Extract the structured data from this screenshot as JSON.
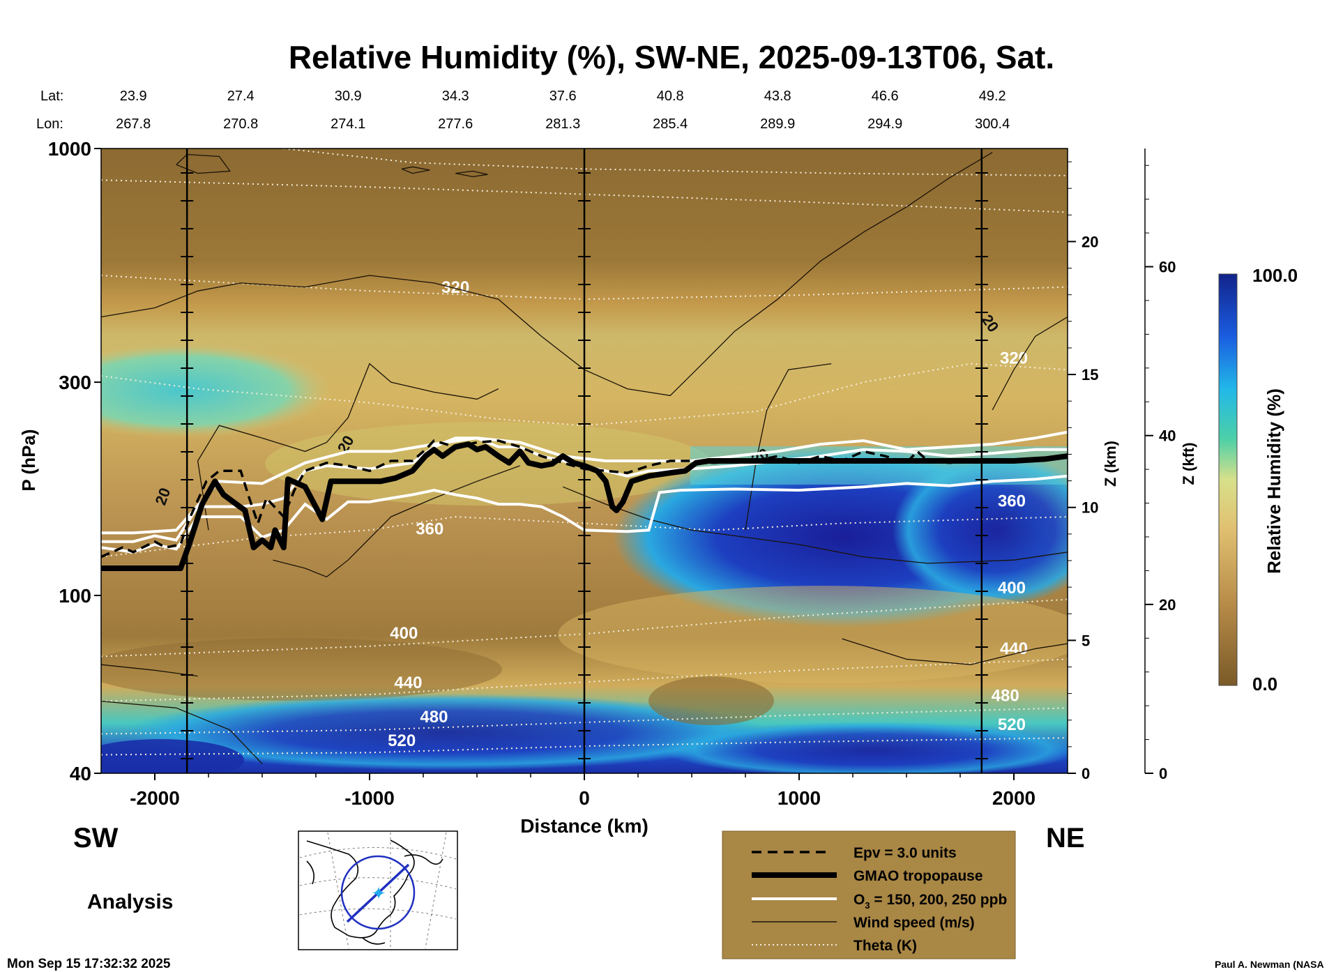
{
  "chart_data": {
    "type": "heatmap",
    "title": "Relative Humidity (%), SW-NE, 2025-09-13T06, Sat.",
    "xlabel": "Distance (km)",
    "ylabel": "P (hPa)",
    "y2label": "Z (km)",
    "y3label": "Z (kft)",
    "colorbar_label": "Relative Humidity (%)",
    "colorbar_max_label": "100.0",
    "colorbar_min_label": "0.0",
    "xlim": [
      -2250,
      2250
    ],
    "ylim_hpa": [
      1000,
      40
    ],
    "x_ticks": [
      "-2000",
      "-1000",
      "0",
      "1000",
      "2000"
    ],
    "x_tick_values": [
      -2000,
      -1000,
      0,
      1000,
      2000
    ],
    "y_ticks": [
      "40",
      "100",
      "300",
      "1000"
    ],
    "y_tick_values": [
      40,
      100,
      300,
      1000
    ],
    "z_km_ticks": [
      "0",
      "5",
      "10",
      "15",
      "20"
    ],
    "z_km_values": [
      0,
      5,
      10,
      15,
      20
    ],
    "z_kft_ticks": [
      "0",
      "20",
      "40",
      "60"
    ],
    "z_kft_values": [
      0,
      20,
      40,
      60
    ],
    "lat_label": "Lat:",
    "lon_label": "Lon:",
    "lat_values": [
      "23.9",
      "27.4",
      "30.9",
      "34.3",
      "37.6",
      "40.8",
      "43.8",
      "46.6",
      "49.2"
    ],
    "lon_values": [
      "267.8",
      "270.8",
      "274.1",
      "277.6",
      "281.3",
      "285.4",
      "289.9",
      "294.9",
      "300.4"
    ],
    "station_distances_km": [
      -2100,
      -1600,
      -1100,
      -600,
      -100,
      400,
      900,
      1400,
      1900
    ],
    "marker_lines_km": [
      -1850,
      0,
      1850
    ],
    "theta_levels": [
      320,
      360,
      400,
      440,
      480,
      520
    ],
    "theta_labels": [
      "320",
      "360",
      "400",
      "440",
      "480",
      "520"
    ],
    "wind_speed_label": "20",
    "tropopause_hpa": [
      [
        -2250,
        115
      ],
      [
        -1880,
        115
      ],
      [
        -1840,
        130
      ],
      [
        -1780,
        160
      ],
      [
        -1720,
        180
      ],
      [
        -1680,
        168
      ],
      [
        -1620,
        160
      ],
      [
        -1580,
        155
      ],
      [
        -1540,
        128
      ],
      [
        -1500,
        133
      ],
      [
        -1460,
        128
      ],
      [
        -1440,
        140
      ],
      [
        -1400,
        128
      ],
      [
        -1380,
        182
      ],
      [
        -1300,
        175
      ],
      [
        -1220,
        148
      ],
      [
        -1180,
        180
      ],
      [
        -1100,
        180
      ],
      [
        -950,
        180
      ],
      [
        -880,
        183
      ],
      [
        -800,
        190
      ],
      [
        -740,
        205
      ],
      [
        -700,
        212
      ],
      [
        -660,
        205
      ],
      [
        -600,
        215
      ],
      [
        -540,
        218
      ],
      [
        -500,
        212
      ],
      [
        -460,
        215
      ],
      [
        -400,
        205
      ],
      [
        -350,
        198
      ],
      [
        -300,
        210
      ],
      [
        -260,
        198
      ],
      [
        -200,
        195
      ],
      [
        -150,
        197
      ],
      [
        -100,
        205
      ],
      [
        -50,
        198
      ],
      [
        0,
        195
      ],
      [
        60,
        190
      ],
      [
        100,
        180
      ],
      [
        130,
        158
      ],
      [
        150,
        155
      ],
      [
        180,
        162
      ],
      [
        220,
        180
      ],
      [
        300,
        185
      ],
      [
        400,
        188
      ],
      [
        470,
        190
      ],
      [
        520,
        198
      ],
      [
        580,
        200
      ],
      [
        2000,
        200
      ],
      [
        2150,
        202
      ],
      [
        2250,
        205
      ]
    ],
    "epv_hpa": [
      [
        -2250,
        122
      ],
      [
        -2150,
        128
      ],
      [
        -2100,
        125
      ],
      [
        -2000,
        132
      ],
      [
        -1950,
        128
      ],
      [
        -1880,
        130
      ],
      [
        -1840,
        148
      ],
      [
        -1760,
        180
      ],
      [
        -1700,
        190
      ],
      [
        -1600,
        190
      ],
      [
        -1560,
        165
      ],
      [
        -1520,
        145
      ],
      [
        -1480,
        165
      ],
      [
        -1400,
        150
      ],
      [
        -1350,
        172
      ],
      [
        -1300,
        190
      ],
      [
        -1200,
        198
      ],
      [
        -1100,
        195
      ],
      [
        -1000,
        190
      ],
      [
        -900,
        200
      ],
      [
        -800,
        200
      ],
      [
        -740,
        212
      ],
      [
        -700,
        222
      ],
      [
        -600,
        215
      ],
      [
        -500,
        220
      ],
      [
        -400,
        222
      ],
      [
        -300,
        215
      ],
      [
        -200,
        205
      ],
      [
        -100,
        198
      ],
      [
        0,
        192
      ],
      [
        100,
        190
      ],
      [
        200,
        188
      ],
      [
        300,
        195
      ],
      [
        400,
        200
      ],
      [
        500,
        200
      ],
      [
        600,
        198
      ],
      [
        800,
        200
      ],
      [
        900,
        205
      ],
      [
        1000,
        198
      ],
      [
        1100,
        205
      ],
      [
        1200,
        200
      ],
      [
        1300,
        210
      ],
      [
        1400,
        205
      ],
      [
        1500,
        198
      ],
      [
        1550,
        210
      ],
      [
        1600,
        200
      ],
      [
        1700,
        198
      ],
      [
        1800,
        200
      ],
      [
        2000,
        200
      ],
      [
        2250,
        205
      ]
    ],
    "ozone_hpa": [
      [
        [
          -2250,
          128
        ],
        [
          -2100,
          125
        ],
        [
          -2000,
          130
        ],
        [
          -1900,
          127
        ],
        [
          -1800,
          150
        ],
        [
          -1600,
          150
        ],
        [
          -1500,
          135
        ],
        [
          -1400,
          140
        ],
        [
          -1300,
          160
        ],
        [
          -1200,
          148
        ],
        [
          -1100,
          162
        ],
        [
          -1000,
          162
        ],
        [
          -900,
          165
        ],
        [
          -800,
          168
        ],
        [
          -700,
          172
        ],
        [
          -600,
          168
        ],
        [
          -500,
          165
        ],
        [
          -400,
          160
        ],
        [
          -300,
          160
        ],
        [
          -200,
          158
        ],
        [
          -100,
          150
        ],
        [
          0,
          140
        ],
        [
          200,
          139
        ],
        [
          300,
          140
        ],
        [
          350,
          170
        ],
        [
          450,
          172
        ],
        [
          700,
          173
        ],
        [
          1000,
          172
        ],
        [
          1300,
          175
        ],
        [
          1500,
          178
        ],
        [
          1700,
          176
        ],
        [
          1900,
          180
        ],
        [
          2100,
          182
        ],
        [
          2250,
          185
        ]
      ],
      [
        [
          -2250,
          132
        ],
        [
          -2100,
          132
        ],
        [
          -2000,
          136
        ],
        [
          -1900,
          133
        ],
        [
          -1800,
          158
        ],
        [
          -1600,
          158
        ],
        [
          -1500,
          160
        ],
        [
          -1400,
          165
        ],
        [
          -1300,
          190
        ],
        [
          -1200,
          195
        ],
        [
          -1000,
          192
        ],
        [
          -900,
          195
        ],
        [
          -800,
          198
        ],
        [
          -700,
          215
        ],
        [
          -600,
          225
        ],
        [
          -500,
          225
        ],
        [
          -400,
          215
        ],
        [
          -300,
          215
        ],
        [
          -200,
          205
        ],
        [
          -100,
          200
        ],
        [
          0,
          195
        ],
        [
          100,
          190
        ],
        [
          200,
          185
        ],
        [
          300,
          190
        ],
        [
          500,
          192
        ],
        [
          700,
          195
        ],
        [
          900,
          200
        ],
        [
          1100,
          205
        ],
        [
          1300,
          212
        ],
        [
          1500,
          210
        ],
        [
          1700,
          205
        ],
        [
          1900,
          208
        ],
        [
          2100,
          212
        ],
        [
          2250,
          212
        ]
      ],
      [
        [
          -2250,
          138
        ],
        [
          -2100,
          138
        ],
        [
          -1900,
          140
        ],
        [
          -1700,
          180
        ],
        [
          -1500,
          178
        ],
        [
          -1300,
          198
        ],
        [
          -1100,
          210
        ],
        [
          -900,
          210
        ],
        [
          -700,
          218
        ],
        [
          -500,
          225
        ],
        [
          -300,
          220
        ],
        [
          -100,
          205
        ],
        [
          100,
          200
        ],
        [
          300,
          200
        ],
        [
          500,
          200
        ],
        [
          700,
          205
        ],
        [
          900,
          210
        ],
        [
          1100,
          218
        ],
        [
          1300,
          222
        ],
        [
          1500,
          212
        ],
        [
          1700,
          215
        ],
        [
          1900,
          218
        ],
        [
          2100,
          225
        ],
        [
          2250,
          232
        ]
      ]
    ],
    "legend": {
      "epv": "Epv = 3.0 units",
      "tropopause": "GMAO tropopause",
      "ozone_prefix": "O",
      "ozone_sub": "3",
      "ozone_suffix": " = 150, 200, 250 ppb",
      "wind": "Wind speed (m/s)",
      "theta": "Theta (K)"
    },
    "left_region": "SW",
    "right_region": "NE",
    "analysis_label": "Analysis",
    "timestamp": "Mon Sep 15 17:32:32 2025",
    "credit": "Paul A. Newman (NASA",
    "colors": {
      "dry": "#8c6a32",
      "mid": "#d8b25e",
      "moist": "#2ec8e0",
      "wet": "#1e2fb0",
      "legend_bg": "#a98745"
    }
  }
}
